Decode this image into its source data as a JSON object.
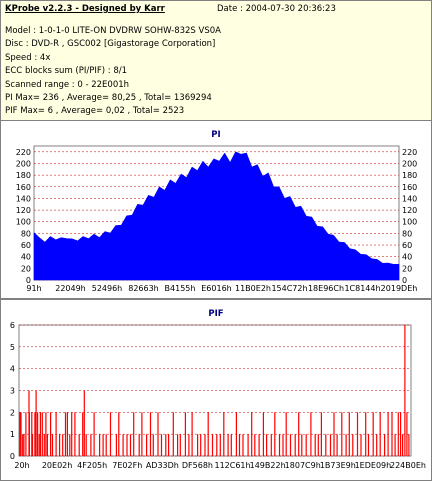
{
  "header": {
    "title": "KProbe v2.2.3 - Designed by Karr",
    "date": "Date : 2004-07-30 20:36:23",
    "lines": [
      "Model : 1-0-1-0 LITE-ON DVDRW SOHW-832S  VS0A",
      "Disc : DVD-R , GSC002 [Gigastorage Corporation]",
      "Speed : 4x",
      "ECC blocks sum (PI/PIF) : 8/1",
      "Scanned range : 0 - 22E001h",
      "PI Max= 236 , Average= 80,25 , Total= 1369294",
      "PIF Max= 6 , Average= 0,02 , Total= 2523"
    ]
  },
  "colors": {
    "pi_fill": "#0000ff",
    "pif_bar": "#ff0000",
    "grid": "#c00000",
    "background": "#ffffff"
  },
  "chart_data": [
    {
      "type": "area",
      "title": "PI",
      "xlabel": "",
      "ylabel": "",
      "ylim": [
        0,
        230
      ],
      "yticks": [
        0,
        20,
        40,
        60,
        80,
        100,
        120,
        140,
        160,
        180,
        200,
        220
      ],
      "right_yticks": [
        0,
        20,
        40,
        60,
        80,
        100,
        120,
        140,
        160,
        180,
        200,
        220
      ],
      "xtick_labels": [
        "91h",
        "22049h",
        "52496h",
        "82663h",
        "B4155h",
        "E6016h",
        "11B0E2h",
        "154C72h",
        "18E96Ch",
        "1C8144h",
        "2019DEh"
      ],
      "grid": true,
      "series": [
        {
          "values": [
            85,
            70,
            68,
            72,
            72,
            70,
            74,
            68,
            70,
            72,
            74,
            76,
            76,
            80,
            84,
            90,
            98,
            106,
            116,
            125,
            134,
            140,
            148,
            154,
            160,
            166,
            172,
            176,
            182,
            188,
            194,
            198,
            200,
            202,
            210,
            212,
            208,
            214,
            222,
            212,
            200,
            192,
            184,
            178,
            166,
            154,
            146,
            138,
            130,
            122,
            114,
            104,
            96,
            88,
            82,
            74,
            68,
            62,
            56,
            50,
            46,
            42,
            38,
            34,
            30,
            28,
            28,
            26
          ]
        }
      ]
    },
    {
      "type": "bar",
      "title": "PIF",
      "xlabel": "",
      "ylabel": "",
      "ylim": [
        0,
        6
      ],
      "yticks": [
        0,
        1,
        2,
        3,
        4,
        5,
        6
      ],
      "xtick_labels": [
        "20h",
        "20E02h",
        "4F205h",
        "7E02Fh",
        "AD33Dh",
        "DF568h",
        "112C61h",
        "149B22h",
        "1807C9h",
        "1B73E9h",
        "1EDE09h",
        "224B0Eh"
      ],
      "grid": true,
      "series": [
        {
          "values": [
            [
              0.05,
              2
            ],
            [
              0.18,
              2
            ],
            [
              0.35,
              2
            ],
            [
              0.8,
              1
            ],
            [
              1.1,
              1
            ],
            [
              1.6,
              2
            ],
            [
              2.4,
              3
            ],
            [
              2.5,
              2
            ],
            [
              3.1,
              2
            ],
            [
              3.3,
              1
            ],
            [
              3.9,
              2
            ],
            [
              4.2,
              3
            ],
            [
              4.6,
              2
            ],
            [
              5.0,
              1
            ],
            [
              5.3,
              2
            ],
            [
              5.8,
              2
            ],
            [
              6.3,
              1
            ],
            [
              6.7,
              2
            ],
            [
              7.1,
              1
            ],
            [
              7.9,
              2
            ],
            [
              8.4,
              1
            ],
            [
              9.3,
              2
            ],
            [
              10.2,
              1
            ],
            [
              11.0,
              1
            ],
            [
              11.7,
              2
            ],
            [
              12.2,
              2
            ],
            [
              12.8,
              1
            ],
            [
              13.3,
              2
            ],
            [
              14.1,
              2
            ],
            [
              15.2,
              1
            ],
            [
              16.1,
              2
            ],
            [
              16.5,
              3
            ],
            [
              17.0,
              1
            ],
            [
              18.2,
              1
            ],
            [
              19.0,
              2
            ],
            [
              20.4,
              1
            ],
            [
              21.3,
              1
            ],
            [
              22.1,
              1
            ],
            [
              23.2,
              2
            ],
            [
              24.7,
              1
            ],
            [
              25.3,
              2
            ],
            [
              26.4,
              1
            ],
            [
              27.4,
              1
            ],
            [
              28.3,
              1
            ],
            [
              29.1,
              2
            ],
            [
              30.5,
              1
            ],
            [
              31.2,
              2
            ],
            [
              32.4,
              1
            ],
            [
              33.4,
              2
            ],
            [
              34.1,
              1
            ],
            [
              35.3,
              2
            ],
            [
              36.2,
              1
            ],
            [
              37.3,
              1
            ],
            [
              38.0,
              1
            ],
            [
              39.2,
              2
            ],
            [
              40.3,
              1
            ],
            [
              41.0,
              1
            ],
            [
              42.3,
              2
            ],
            [
              43.2,
              1
            ],
            [
              44.0,
              2
            ],
            [
              45.4,
              1
            ],
            [
              46.2,
              1
            ],
            [
              47.3,
              1
            ],
            [
              48.1,
              2
            ],
            [
              49.2,
              1
            ],
            [
              50.3,
              1
            ],
            [
              51.2,
              1
            ],
            [
              52.1,
              2
            ],
            [
              53.2,
              1
            ],
            [
              54.0,
              1
            ],
            [
              55.3,
              2
            ],
            [
              56.1,
              1
            ],
            [
              57.0,
              1
            ],
            [
              58.3,
              1
            ],
            [
              59.2,
              2
            ],
            [
              60.0,
              1
            ],
            [
              61.1,
              1
            ],
            [
              62.2,
              2
            ],
            [
              63.0,
              1
            ],
            [
              64.2,
              1
            ],
            [
              65.1,
              2
            ],
            [
              66.3,
              1
            ],
            [
              67.2,
              1
            ],
            [
              68.0,
              2
            ],
            [
              69.1,
              1
            ],
            [
              70.3,
              1
            ],
            [
              71.2,
              2
            ],
            [
              72.0,
              1
            ],
            [
              73.1,
              1
            ],
            [
              74.3,
              2
            ],
            [
              75.4,
              1
            ],
            [
              76.2,
              1
            ],
            [
              77.0,
              2
            ],
            [
              78.1,
              1
            ],
            [
              79.3,
              1
            ],
            [
              80.2,
              2
            ],
            [
              81.0,
              1
            ],
            [
              82.2,
              2
            ],
            [
              83.3,
              1
            ],
            [
              84.1,
              2
            ],
            [
              85.0,
              1
            ],
            [
              86.2,
              2
            ],
            [
              87.1,
              1
            ],
            [
              88.3,
              2
            ],
            [
              89.0,
              1
            ],
            [
              90.2,
              2
            ],
            [
              91.1,
              1
            ],
            [
              92.0,
              2
            ],
            [
              93.1,
              1
            ],
            [
              94.0,
              2
            ],
            [
              95.0,
              2
            ],
            [
              95.8,
              1
            ],
            [
              96.6,
              2
            ],
            [
              97.2,
              2
            ],
            [
              97.7,
              1
            ],
            [
              98.3,
              6
            ],
            [
              98.8,
              2
            ],
            [
              99.3,
              1
            ]
          ]
        }
      ]
    }
  ]
}
